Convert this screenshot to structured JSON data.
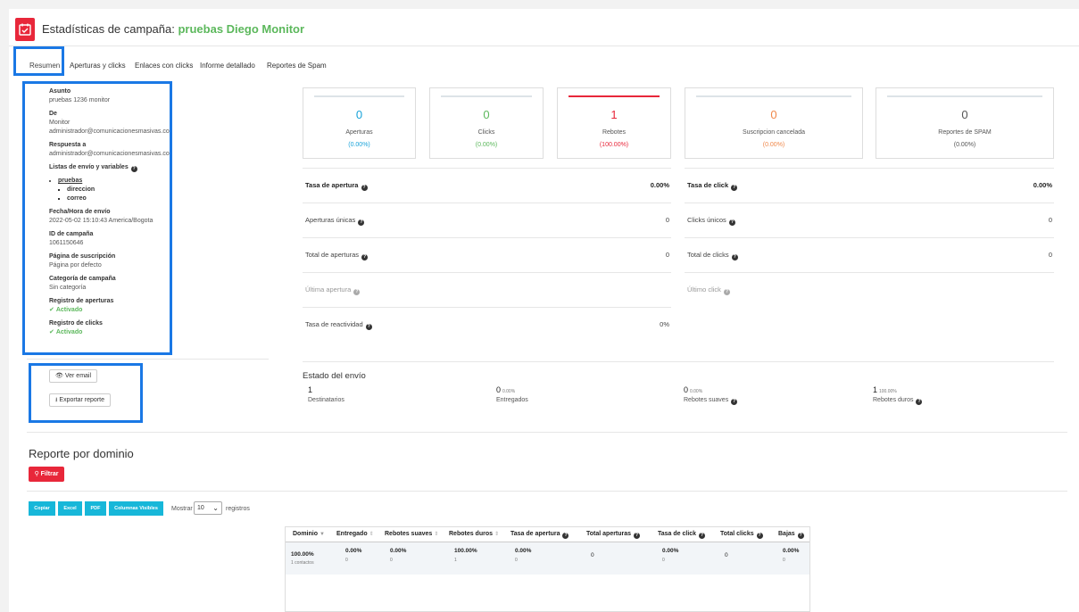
{
  "header": {
    "title_prefix": "Estadísticas de campaña:",
    "campaign_name": "pruebas Diego Monitor"
  },
  "tabs": [
    "Resumen",
    "Aperturas y clicks",
    "Enlaces con clicks",
    "Informe detallado",
    "Reportes de Spam"
  ],
  "info": {
    "asunto_label": "Asunto",
    "asunto_value": "pruebas 1236 monitor",
    "de_label": "De",
    "de_name": "Monitor",
    "de_email": "administrador@comunicacionesmasivas.co",
    "respuesta_label": "Respuesta a",
    "respuesta_value": "administrador@comunicacionesmasivas.co",
    "listas_label": "Listas de envío y variables",
    "lista_name": "pruebas",
    "variables": [
      "direccion",
      "correo"
    ],
    "fecha_label": "Fecha/Hora de envío",
    "fecha_value": "2022-05-02 15:10:43 America/Bogota",
    "id_label": "ID de campaña",
    "id_value": "1061150646",
    "pagina_label": "Página de suscripción",
    "pagina_value": "Página por defecto",
    "categoria_label": "Categoría de campaña",
    "categoria_value": "Sin categoría",
    "reg_aperturas_label": "Registro de aperturas",
    "reg_aperturas_value": "Activado",
    "reg_clicks_label": "Registro de clicks",
    "reg_clicks_value": "Activado"
  },
  "actions": {
    "ver_email": "Ver email",
    "exportar": "Exportar reporte"
  },
  "cards": [
    {
      "num": "0",
      "label": "Aperturas",
      "pct": "(0.00%)",
      "color": "#17a2d9",
      "pct_color": "#17a2d9"
    },
    {
      "num": "0",
      "label": "Clicks",
      "pct": "(0.00%)",
      "color": "#5cb85c",
      "pct_color": "#5cb85c"
    },
    {
      "num": "1",
      "label": "Rebotes",
      "pct": "(100.00%)",
      "color": "#e8273a",
      "pct_color": "#e8273a"
    },
    {
      "num": "0",
      "label": "Suscripcion cancelada",
      "pct": "(0.00%)",
      "color": "#f0884a",
      "pct_color": "#f0884a"
    },
    {
      "num": "0",
      "label": "Reportes de SPAM",
      "pct": "(0.00%)",
      "color": "#555555",
      "pct_color": "#555555"
    }
  ],
  "stats_left": [
    {
      "label": "Tasa de apertura",
      "value": "0.00%"
    },
    {
      "label": "Aperturas únicas",
      "value": "0"
    },
    {
      "label": "Total de aperturas",
      "value": "0"
    },
    {
      "label": "Última apertura",
      "value": ""
    },
    {
      "label": "Tasa de reactividad",
      "value": "0%"
    }
  ],
  "stats_right": [
    {
      "label": "Tasa de click",
      "value": "0.00%"
    },
    {
      "label": "Clicks únicos",
      "value": "0"
    },
    {
      "label": "Total de clicks",
      "value": "0"
    },
    {
      "label": "Último click",
      "value": ""
    }
  ],
  "estado": {
    "title": "Estado del envío",
    "items": [
      {
        "n": "1",
        "p": "",
        "t": "Destinatarios"
      },
      {
        "n": "0",
        "p": "0.00%",
        "t": "Entregados"
      },
      {
        "n": "0",
        "p": "0.00%",
        "t": "Rebotes suaves"
      },
      {
        "n": "1",
        "p": "100.00%",
        "t": "Rebotes duros"
      }
    ]
  },
  "dominio": {
    "title": "Reporte por dominio",
    "filter": "Filtrar",
    "buttons": [
      "Copiar",
      "Excel",
      "PDF",
      "Columnas Visibles"
    ],
    "mostrar": "Mostrar",
    "page_size": "10",
    "registros": "registros",
    "headers": [
      "Dominio",
      "Entregado",
      "Rebotes suaves",
      "Rebotes duros",
      "Tasa de apertura",
      "Total aperturas",
      "Tasa de click",
      "Total clicks",
      "Bajas"
    ],
    "row": {
      "dominio": "100.00%",
      "dominio_sub": "1 contactos",
      "entregado": "0.00%",
      "entregado_sub": "0",
      "suaves": "0.00%",
      "suaves_sub": "0",
      "duros": "100.00%",
      "duros_sub": "1",
      "tasa_apertura": "0.00%",
      "tasa_apertura_sub": "0",
      "total_aperturas": "0",
      "tasa_click": "0.00%",
      "tasa_click_sub": "0",
      "total_clicks": "0",
      "bajas": "0.00%",
      "bajas_sub": "0"
    }
  }
}
